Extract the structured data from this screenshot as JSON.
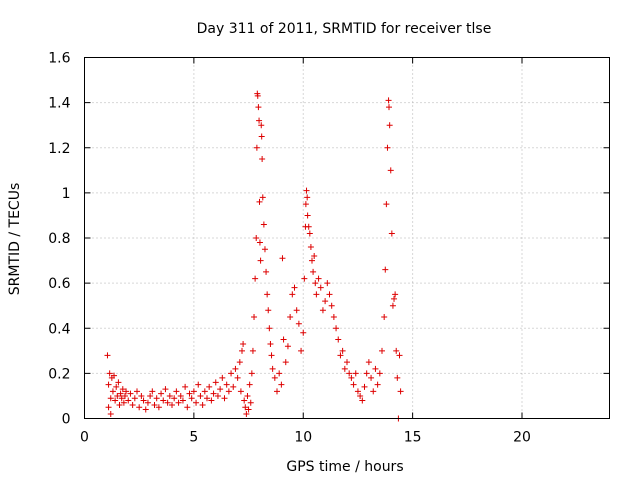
{
  "chart_data": {
    "type": "scatter",
    "title": "Day 311 of 2011, SRMTID for receiver tlse",
    "xlabel": "GPS time / hours",
    "ylabel": "SRMTID / TECUs",
    "xlim": [
      0,
      24
    ],
    "ylim": [
      0,
      1.6
    ],
    "xticks": [
      0,
      5,
      10,
      15,
      20
    ],
    "xtick_labels": [
      "0",
      "5",
      "10",
      "15",
      "20"
    ],
    "yticks": [
      0,
      0.2,
      0.4,
      0.6,
      0.8,
      1.0,
      1.2,
      1.4,
      1.6
    ],
    "ytick_labels": [
      "0",
      "0.2",
      "0.4",
      "0.6",
      "0.8",
      "1",
      "1.2",
      "1.4",
      "1.6"
    ],
    "grid": true,
    "marker": "+",
    "series": [
      {
        "name": "SRMTID",
        "color": "#dd0000",
        "points": [
          [
            1.05,
            0.28
          ],
          [
            1.1,
            0.15
          ],
          [
            1.1,
            0.05
          ],
          [
            1.15,
            0.2
          ],
          [
            1.2,
            0.09
          ],
          [
            1.2,
            0.02
          ],
          [
            1.25,
            0.18
          ],
          [
            1.3,
            0.12
          ],
          [
            1.35,
            0.19
          ],
          [
            1.4,
            0.08
          ],
          [
            1.45,
            0.14
          ],
          [
            1.5,
            0.1
          ],
          [
            1.55,
            0.16
          ],
          [
            1.6,
            0.06
          ],
          [
            1.65,
            0.11
          ],
          [
            1.7,
            0.09
          ],
          [
            1.75,
            0.13
          ],
          [
            1.8,
            0.07
          ],
          [
            1.85,
            0.1
          ],
          [
            1.9,
            0.12
          ],
          [
            2.0,
            0.08
          ],
          [
            2.1,
            0.11
          ],
          [
            2.2,
            0.06
          ],
          [
            2.3,
            0.09
          ],
          [
            2.4,
            0.12
          ],
          [
            2.5,
            0.05
          ],
          [
            2.6,
            0.1
          ],
          [
            2.7,
            0.08
          ],
          [
            2.8,
            0.04
          ],
          [
            2.9,
            0.07
          ],
          [
            3.0,
            0.1
          ],
          [
            3.1,
            0.12
          ],
          [
            3.2,
            0.06
          ],
          [
            3.3,
            0.09
          ],
          [
            3.4,
            0.05
          ],
          [
            3.5,
            0.11
          ],
          [
            3.6,
            0.08
          ],
          [
            3.7,
            0.13
          ],
          [
            3.8,
            0.07
          ],
          [
            3.9,
            0.1
          ],
          [
            4.0,
            0.06
          ],
          [
            4.1,
            0.09
          ],
          [
            4.2,
            0.12
          ],
          [
            4.3,
            0.07
          ],
          [
            4.4,
            0.1
          ],
          [
            4.5,
            0.08
          ],
          [
            4.6,
            0.14
          ],
          [
            4.7,
            0.05
          ],
          [
            4.8,
            0.11
          ],
          [
            4.9,
            0.09
          ],
          [
            5.0,
            0.12
          ],
          [
            5.1,
            0.07
          ],
          [
            5.2,
            0.15
          ],
          [
            5.3,
            0.1
          ],
          [
            5.4,
            0.06
          ],
          [
            5.5,
            0.12
          ],
          [
            5.6,
            0.09
          ],
          [
            5.7,
            0.14
          ],
          [
            5.8,
            0.08
          ],
          [
            5.9,
            0.11
          ],
          [
            6.0,
            0.16
          ],
          [
            6.1,
            0.1
          ],
          [
            6.2,
            0.13
          ],
          [
            6.3,
            0.18
          ],
          [
            6.4,
            0.09
          ],
          [
            6.5,
            0.15
          ],
          [
            6.6,
            0.12
          ],
          [
            6.7,
            0.2
          ],
          [
            6.8,
            0.14
          ],
          [
            6.9,
            0.22
          ],
          [
            7.0,
            0.18
          ],
          [
            7.1,
            0.25
          ],
          [
            7.15,
            0.12
          ],
          [
            7.2,
            0.3
          ],
          [
            7.25,
            0.33
          ],
          [
            7.3,
            0.08
          ],
          [
            7.35,
            0.05
          ],
          [
            7.4,
            0.02
          ],
          [
            7.45,
            0.1
          ],
          [
            7.5,
            0.04
          ],
          [
            7.55,
            0.15
          ],
          [
            7.6,
            0.07
          ],
          [
            7.65,
            0.2
          ],
          [
            7.7,
            0.3
          ],
          [
            7.75,
            0.45
          ],
          [
            7.8,
            0.62
          ],
          [
            7.85,
            0.8
          ],
          [
            7.88,
            1.2
          ],
          [
            7.9,
            1.44
          ],
          [
            7.92,
            1.43
          ],
          [
            7.95,
            1.38
          ],
          [
            7.98,
            1.32
          ],
          [
            8.0,
            0.96
          ],
          [
            8.02,
            0.78
          ],
          [
            8.05,
            0.7
          ],
          [
            8.08,
            1.3
          ],
          [
            8.1,
            1.25
          ],
          [
            8.12,
            1.15
          ],
          [
            8.15,
            0.98
          ],
          [
            8.2,
            0.86
          ],
          [
            8.25,
            0.75
          ],
          [
            8.3,
            0.65
          ],
          [
            8.35,
            0.55
          ],
          [
            8.4,
            0.48
          ],
          [
            8.45,
            0.4
          ],
          [
            8.5,
            0.33
          ],
          [
            8.55,
            0.28
          ],
          [
            8.6,
            0.22
          ],
          [
            8.7,
            0.18
          ],
          [
            8.8,
            0.12
          ],
          [
            8.9,
            0.2
          ],
          [
            9.0,
            0.15
          ],
          [
            9.05,
            0.71
          ],
          [
            9.1,
            0.35
          ],
          [
            9.2,
            0.25
          ],
          [
            9.3,
            0.32
          ],
          [
            9.4,
            0.45
          ],
          [
            9.5,
            0.55
          ],
          [
            9.6,
            0.58
          ],
          [
            9.7,
            0.48
          ],
          [
            9.8,
            0.42
          ],
          [
            9.9,
            0.3
          ],
          [
            10.0,
            0.38
          ],
          [
            10.05,
            0.62
          ],
          [
            10.1,
            0.85
          ],
          [
            10.12,
            0.95
          ],
          [
            10.15,
            1.01
          ],
          [
            10.18,
            0.98
          ],
          [
            10.2,
            0.9
          ],
          [
            10.25,
            0.85
          ],
          [
            10.3,
            0.82
          ],
          [
            10.35,
            0.76
          ],
          [
            10.4,
            0.7
          ],
          [
            10.45,
            0.65
          ],
          [
            10.5,
            0.72
          ],
          [
            10.55,
            0.6
          ],
          [
            10.6,
            0.55
          ],
          [
            10.7,
            0.62
          ],
          [
            10.8,
            0.58
          ],
          [
            10.9,
            0.48
          ],
          [
            11.0,
            0.52
          ],
          [
            11.1,
            0.6
          ],
          [
            11.2,
            0.55
          ],
          [
            11.3,
            0.5
          ],
          [
            11.4,
            0.45
          ],
          [
            11.5,
            0.4
          ],
          [
            11.6,
            0.35
          ],
          [
            11.7,
            0.28
          ],
          [
            11.8,
            0.3
          ],
          [
            11.9,
            0.22
          ],
          [
            12.0,
            0.25
          ],
          [
            12.1,
            0.2
          ],
          [
            12.2,
            0.18
          ],
          [
            12.3,
            0.15
          ],
          [
            12.4,
            0.2
          ],
          [
            12.5,
            0.12
          ],
          [
            12.6,
            0.1
          ],
          [
            12.7,
            0.08
          ],
          [
            12.8,
            0.14
          ],
          [
            12.9,
            0.2
          ],
          [
            13.0,
            0.25
          ],
          [
            13.1,
            0.18
          ],
          [
            13.2,
            0.12
          ],
          [
            13.3,
            0.22
          ],
          [
            13.4,
            0.15
          ],
          [
            13.5,
            0.2
          ],
          [
            13.6,
            0.3
          ],
          [
            13.7,
            0.45
          ],
          [
            13.75,
            0.66
          ],
          [
            13.8,
            0.95
          ],
          [
            13.85,
            1.2
          ],
          [
            13.9,
            1.41
          ],
          [
            13.92,
            1.38
          ],
          [
            13.95,
            1.3
          ],
          [
            14.0,
            1.1
          ],
          [
            14.05,
            0.82
          ],
          [
            14.1,
            0.5
          ],
          [
            14.15,
            0.53
          ],
          [
            14.2,
            0.55
          ],
          [
            14.25,
            0.3
          ],
          [
            14.3,
            0.18
          ],
          [
            14.35,
            0.0
          ],
          [
            14.4,
            0.28
          ],
          [
            14.45,
            0.12
          ]
        ]
      }
    ]
  }
}
